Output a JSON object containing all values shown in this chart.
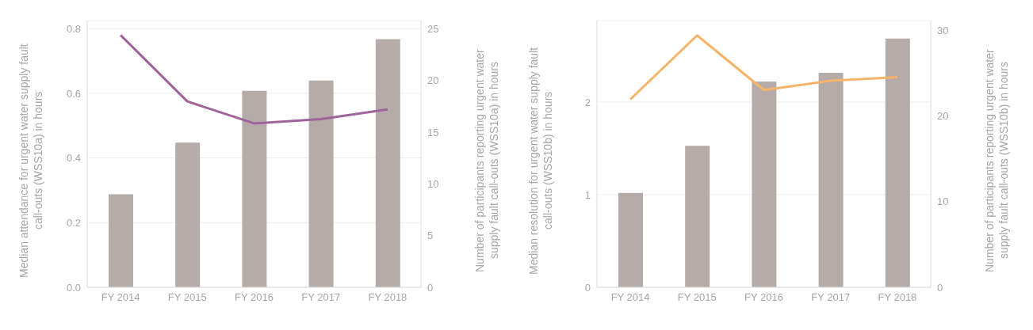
{
  "chart_data": [
    {
      "type": "bar",
      "ylabel": "Median attendance for urgent water supply fault call-outs (WSS10a) in hours",
      "y2label": "Number of participants reporting urgent water supply fault call-outs (WSS10a) in hours",
      "categories": [
        "FY 2014",
        "FY 2015",
        "FY 2016",
        "FY 2017",
        "FY 2018"
      ],
      "series": [
        {
          "axis": "y2",
          "color": "#b5aba8",
          "values": [
            9,
            14,
            19,
            20,
            24
          ]
        },
        {
          "type": "line",
          "color": "#a0649c",
          "values": [
            0.78,
            0.575,
            0.507,
            0.52,
            0.55
          ]
        }
      ],
      "ylim": [
        0,
        0.825
      ],
      "yticks": [
        {
          "value": 0,
          "label": "0.0"
        },
        0.2,
        0.4,
        0.6,
        0.8
      ],
      "y2lim": [
        0,
        25.8
      ],
      "y2ticks": [
        0,
        5,
        10,
        15,
        20,
        25
      ],
      "grid": "y"
    },
    {
      "type": "bar",
      "ylabel": "Median resolution for urgent water supply fault call-outs (WSS10b) in hours",
      "y2label": "Number of participants reporting urgent water supply fault call-outs (WSS10b) in hours",
      "categories": [
        "FY 2014",
        "FY 2015",
        "FY 2016",
        "FY 2017",
        "FY 2018"
      ],
      "series": [
        {
          "axis": "y2",
          "color": "#b5aba8",
          "values": [
            11,
            16.5,
            24,
            25,
            29
          ]
        },
        {
          "type": "line",
          "color": "#f5b468",
          "values": [
            2.03,
            2.72,
            2.13,
            2.23,
            2.27
          ]
        }
      ],
      "ylim": [
        0,
        2.88
      ],
      "yticks": [
        0,
        1,
        2
      ],
      "y2lim": [
        0,
        31.1
      ],
      "y2ticks": [
        0,
        10,
        20,
        30
      ],
      "grid": "y"
    }
  ]
}
